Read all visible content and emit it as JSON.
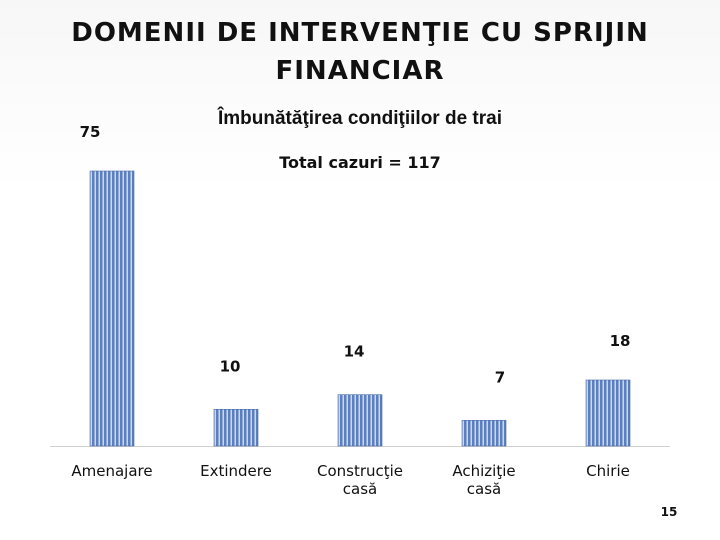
{
  "slide": {
    "title": "DOMENII DE INTERVENŢIE CU SPRIJIN FINANCIAR",
    "page_number": "15"
  },
  "chart_data": {
    "type": "bar",
    "title": "Îmbunătăţirea condiţiilor de trai",
    "subtitle": "Total cazuri = 117",
    "categories": [
      "Amenajare",
      "Extindere",
      "Construcţie casă",
      "Achiziţie casă",
      "Chirie"
    ],
    "values": [
      75,
      10,
      14,
      7,
      18
    ],
    "data_labels": [
      "75",
      "10",
      "14",
      "7",
      "18"
    ],
    "ylim": [
      0,
      75
    ],
    "grid": false,
    "legend": "none",
    "bar_color": "#5b7fbf",
    "bar_stripe_color": "#e8eef8"
  }
}
